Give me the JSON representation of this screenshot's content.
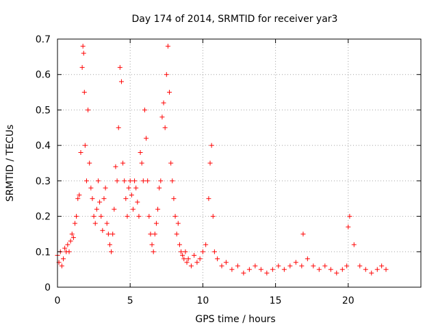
{
  "chart_data": {
    "type": "scatter",
    "title": "Day 174 of 2014, SRMTID for receiver yar3",
    "xlabel": "GPS time / hours",
    "ylabel": "SRMTID / TECUs",
    "xlim": [
      0,
      25
    ],
    "ylim": [
      0,
      0.7
    ],
    "grid": true,
    "marker": "+",
    "marker_color": "#ff0000",
    "x_ticks": [
      0,
      5,
      10,
      15,
      20
    ],
    "x_tick_labels": [
      "0",
      "5",
      "10",
      "15",
      "20"
    ],
    "y_ticks": [
      0,
      0.1,
      0.2,
      0.3,
      0.4,
      0.5,
      0.6,
      0.7
    ],
    "y_tick_labels": [
      "0",
      "0.1",
      "0.2",
      "0.3",
      "0.4",
      "0.5",
      "0.6",
      "0.7"
    ],
    "series": [
      {
        "name": "SRMTID",
        "x": [
          0.0,
          0.1,
          0.2,
          0.3,
          0.4,
          0.5,
          0.6,
          0.7,
          0.8,
          0.9,
          1.0,
          1.1,
          1.2,
          1.3,
          1.4,
          1.5,
          1.6,
          1.7,
          1.75,
          1.8,
          1.85,
          1.9,
          2.0,
          2.1,
          2.2,
          2.3,
          2.4,
          2.5,
          2.6,
          2.7,
          2.8,
          2.9,
          3.0,
          3.1,
          3.2,
          3.3,
          3.4,
          3.5,
          3.6,
          3.7,
          3.8,
          3.9,
          4.0,
          4.1,
          4.2,
          4.3,
          4.4,
          4.5,
          4.6,
          4.7,
          4.8,
          4.9,
          5.0,
          5.1,
          5.2,
          5.3,
          5.4,
          5.5,
          5.6,
          5.7,
          5.8,
          5.9,
          6.0,
          6.1,
          6.2,
          6.3,
          6.4,
          6.5,
          6.6,
          6.7,
          6.8,
          6.9,
          7.0,
          7.1,
          7.2,
          7.3,
          7.4,
          7.5,
          7.6,
          7.7,
          7.8,
          7.9,
          8.0,
          8.1,
          8.2,
          8.3,
          8.4,
          8.5,
          8.6,
          8.7,
          8.8,
          8.9,
          9.0,
          9.2,
          9.4,
          9.6,
          9.8,
          10.0,
          10.2,
          10.4,
          10.5,
          10.6,
          10.7,
          10.8,
          11.0,
          11.3,
          11.6,
          12.0,
          12.4,
          12.8,
          13.2,
          13.6,
          14.0,
          14.4,
          14.8,
          15.2,
          15.6,
          16.0,
          16.4,
          16.8,
          16.9,
          17.2,
          17.6,
          18.0,
          18.4,
          18.8,
          19.2,
          19.6,
          19.9,
          20.0,
          20.1,
          20.4,
          20.8,
          21.2,
          21.6,
          22.0,
          22.3,
          22.6
        ],
        "y": [
          0.09,
          0.07,
          0.1,
          0.06,
          0.08,
          0.11,
          0.1,
          0.12,
          0.1,
          0.13,
          0.15,
          0.14,
          0.18,
          0.2,
          0.25,
          0.26,
          0.38,
          0.62,
          0.68,
          0.66,
          0.55,
          0.4,
          0.3,
          0.5,
          0.35,
          0.28,
          0.25,
          0.2,
          0.18,
          0.22,
          0.3,
          0.24,
          0.2,
          0.16,
          0.25,
          0.28,
          0.18,
          0.15,
          0.12,
          0.1,
          0.15,
          0.22,
          0.34,
          0.3,
          0.45,
          0.62,
          0.58,
          0.35,
          0.3,
          0.25,
          0.2,
          0.28,
          0.3,
          0.26,
          0.22,
          0.3,
          0.28,
          0.24,
          0.2,
          0.38,
          0.35,
          0.3,
          0.5,
          0.42,
          0.3,
          0.2,
          0.15,
          0.12,
          0.1,
          0.15,
          0.18,
          0.22,
          0.28,
          0.3,
          0.48,
          0.52,
          0.45,
          0.6,
          0.68,
          0.55,
          0.35,
          0.3,
          0.25,
          0.2,
          0.15,
          0.18,
          0.12,
          0.1,
          0.09,
          0.08,
          0.1,
          0.07,
          0.08,
          0.06,
          0.09,
          0.07,
          0.08,
          0.1,
          0.12,
          0.25,
          0.35,
          0.4,
          0.2,
          0.1,
          0.08,
          0.06,
          0.07,
          0.05,
          0.06,
          0.04,
          0.05,
          0.06,
          0.05,
          0.04,
          0.05,
          0.06,
          0.05,
          0.06,
          0.07,
          0.06,
          0.15,
          0.08,
          0.06,
          0.05,
          0.06,
          0.05,
          0.04,
          0.05,
          0.06,
          0.17,
          0.2,
          0.12,
          0.06,
          0.05,
          0.04,
          0.05,
          0.06,
          0.05
        ]
      }
    ]
  }
}
